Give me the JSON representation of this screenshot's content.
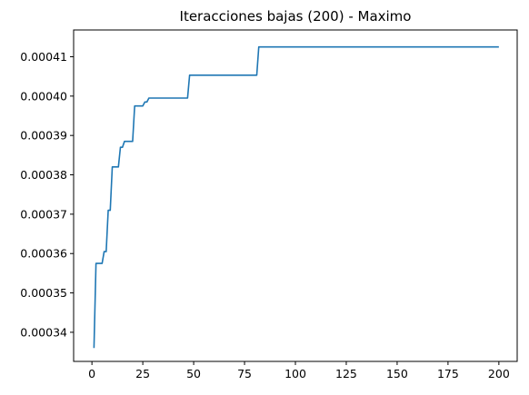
{
  "chart_data": {
    "type": "line",
    "title": "Iteracciones bajas (200) - Maximo",
    "xlabel": "",
    "ylabel": "",
    "xlim": [
      -9,
      209
    ],
    "ylim": [
      0.0003326,
      0.0004168
    ],
    "xticks": [
      0,
      25,
      50,
      75,
      100,
      125,
      150,
      175,
      200
    ],
    "xtick_labels": [
      "0",
      "25",
      "50",
      "75",
      "100",
      "125",
      "150",
      "175",
      "200"
    ],
    "yticks": [
      0.00034,
      0.00035,
      0.00036,
      0.00037,
      0.00038,
      0.00039,
      0.0004,
      0.00041
    ],
    "ytick_labels": [
      "0.00034",
      "0.00035",
      "0.00036",
      "0.00037",
      "0.00038",
      "0.00039",
      "0.00040",
      "0.00041"
    ],
    "grid": false,
    "series": [
      {
        "color": "#1f77b4",
        "x": [
          1,
          2,
          3,
          4,
          5,
          6,
          7,
          8,
          9,
          10,
          11,
          12,
          13,
          14,
          15,
          16,
          17,
          18,
          19,
          20,
          21,
          22,
          23,
          24,
          25,
          26,
          27,
          28,
          29,
          30,
          31,
          32,
          33,
          34,
          35,
          36,
          37,
          38,
          39,
          40,
          41,
          42,
          43,
          44,
          45,
          46,
          47,
          48,
          49,
          50,
          55,
          60,
          65,
          70,
          75,
          80,
          81,
          82,
          83,
          90,
          100,
          125,
          150,
          175,
          200
        ],
        "y": [
          0.000336,
          0.0003575,
          0.0003575,
          0.0003575,
          0.0003575,
          0.0003605,
          0.0003605,
          0.000371,
          0.000371,
          0.000382,
          0.000382,
          0.000382,
          0.000382,
          0.000387,
          0.000387,
          0.0003885,
          0.0003885,
          0.0003885,
          0.0003885,
          0.0003885,
          0.0003975,
          0.0003975,
          0.0003975,
          0.0003975,
          0.0003975,
          0.0003985,
          0.0003985,
          0.0003995,
          0.0003995,
          0.0003995,
          0.0003995,
          0.0003995,
          0.0003995,
          0.0003995,
          0.0003995,
          0.0003995,
          0.0003995,
          0.0003995,
          0.0003995,
          0.0003995,
          0.0003995,
          0.0003995,
          0.0003995,
          0.0003995,
          0.0003995,
          0.0003995,
          0.0003995,
          0.0004053,
          0.0004053,
          0.0004053,
          0.0004053,
          0.0004053,
          0.0004053,
          0.0004053,
          0.0004053,
          0.0004053,
          0.0004053,
          0.0004125,
          0.0004125,
          0.0004125,
          0.0004125,
          0.0004125,
          0.0004125,
          0.0004125,
          0.0004125
        ]
      }
    ]
  }
}
